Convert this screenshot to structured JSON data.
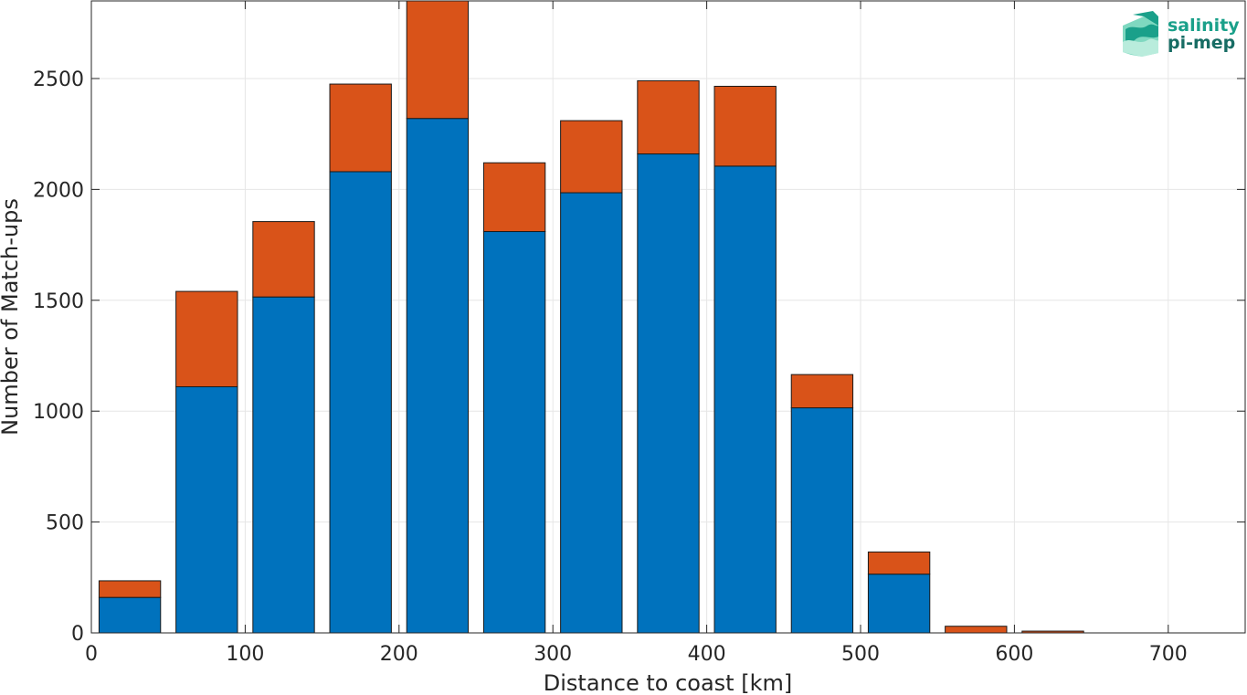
{
  "chart_data": {
    "type": "bar",
    "stacked": true,
    "xlabel": "Distance to coast [km]",
    "ylabel": "Number of Match-ups",
    "xlim": [
      0,
      750
    ],
    "ylim": [
      0,
      2850
    ],
    "xticks": [
      0,
      100,
      200,
      300,
      400,
      500,
      600,
      700
    ],
    "yticks": [
      0,
      500,
      1000,
      1500,
      2000,
      2500
    ],
    "bin_width": 50,
    "x": [
      25,
      75,
      125,
      175,
      225,
      275,
      325,
      375,
      425,
      475,
      525,
      575,
      625
    ],
    "series": [
      {
        "color": "#0072bd",
        "values": [
          160,
          1110,
          1515,
          2080,
          2320,
          1810,
          1985,
          2160,
          2105,
          1015,
          265,
          0,
          0
        ]
      },
      {
        "color": "#d95319",
        "values": [
          75,
          430,
          340,
          395,
          530,
          310,
          325,
          330,
          360,
          150,
          100,
          30,
          8
        ]
      }
    ],
    "grid": true
  },
  "logo": {
    "line1": "salinity",
    "line2": "pi-mep"
  }
}
